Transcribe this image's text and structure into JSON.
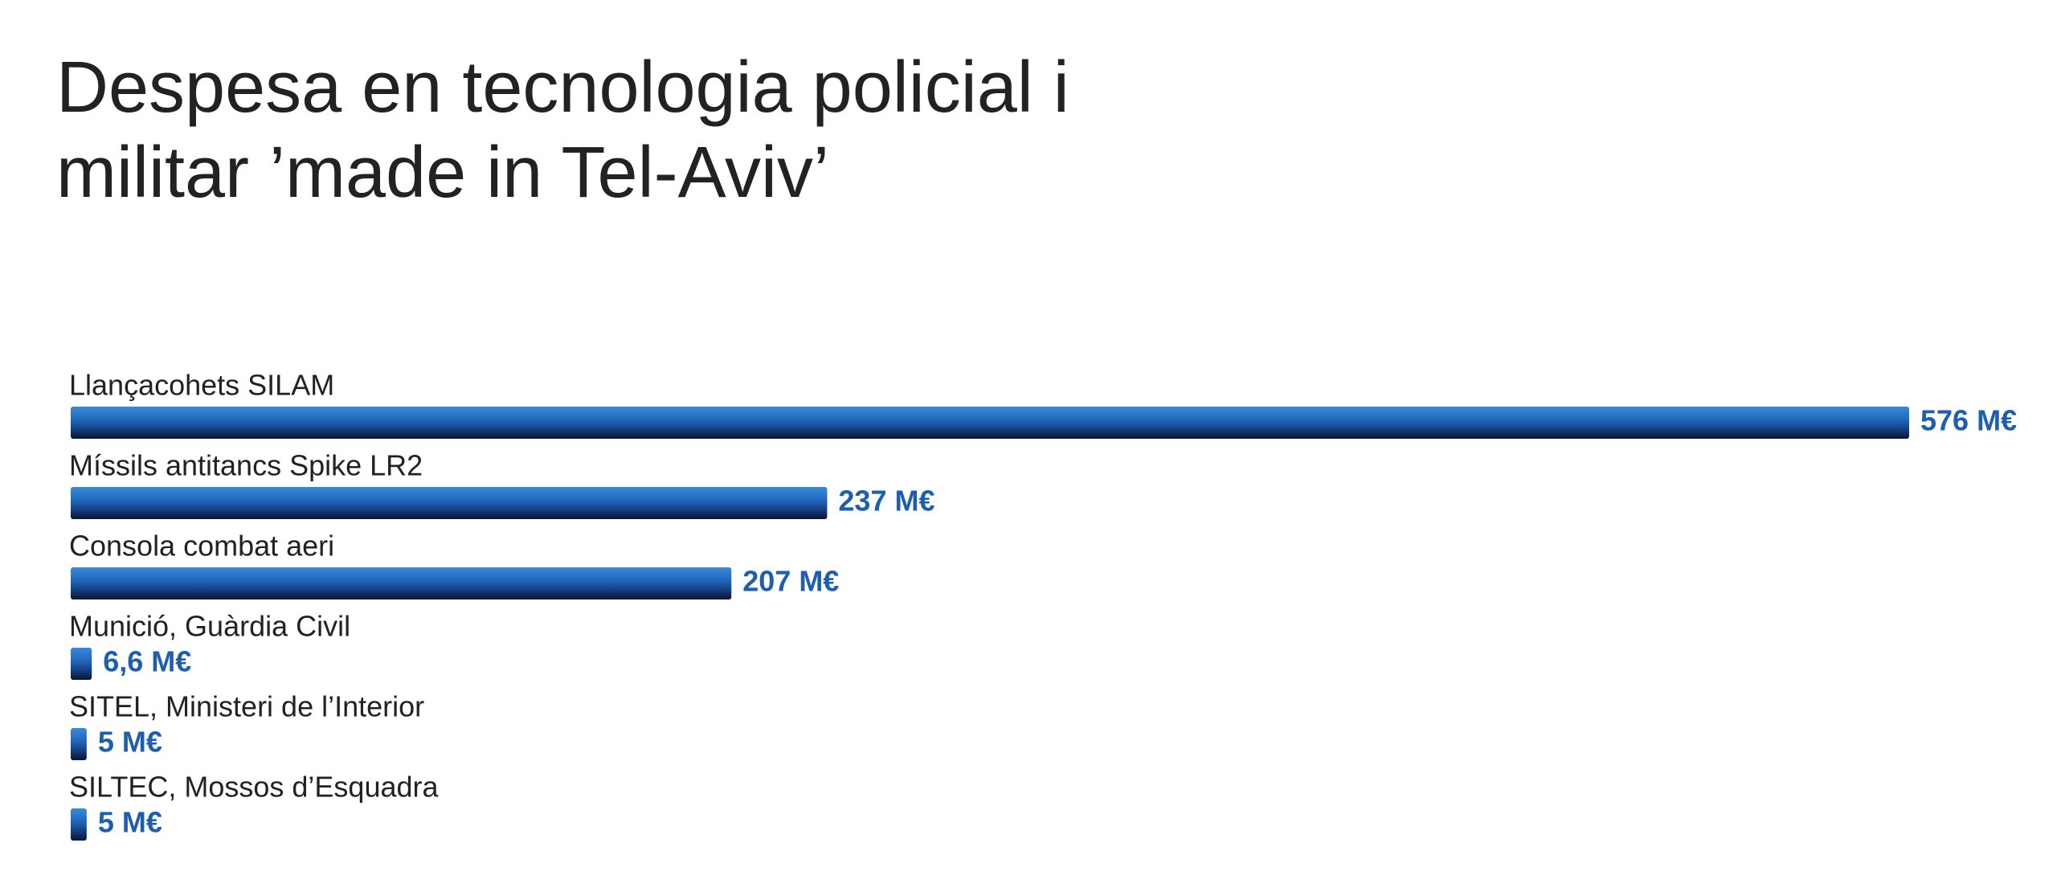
{
  "chart_data": {
    "type": "bar",
    "orientation": "horizontal",
    "title": "Despesa en tecnologia policial i militar ’made in Tel-Aviv’",
    "categories": [
      "Llançacohets SILAM",
      "Míssils antitancs Spike LR2",
      "Consola combat aeri",
      "Munició, Guàrdia Civil",
      "SITEL, Ministeri de l’Interior",
      "SILTEC, Mossos d’Esquadra"
    ],
    "values": [
      576,
      237,
      207,
      6.6,
      5,
      5
    ],
    "value_labels": [
      "576 M€",
      "237 M€",
      "207 M€",
      "6,6 M€",
      "5 M€",
      "5 M€"
    ],
    "color": "#1e63b8",
    "label_color": "#1d5fad"
  }
}
